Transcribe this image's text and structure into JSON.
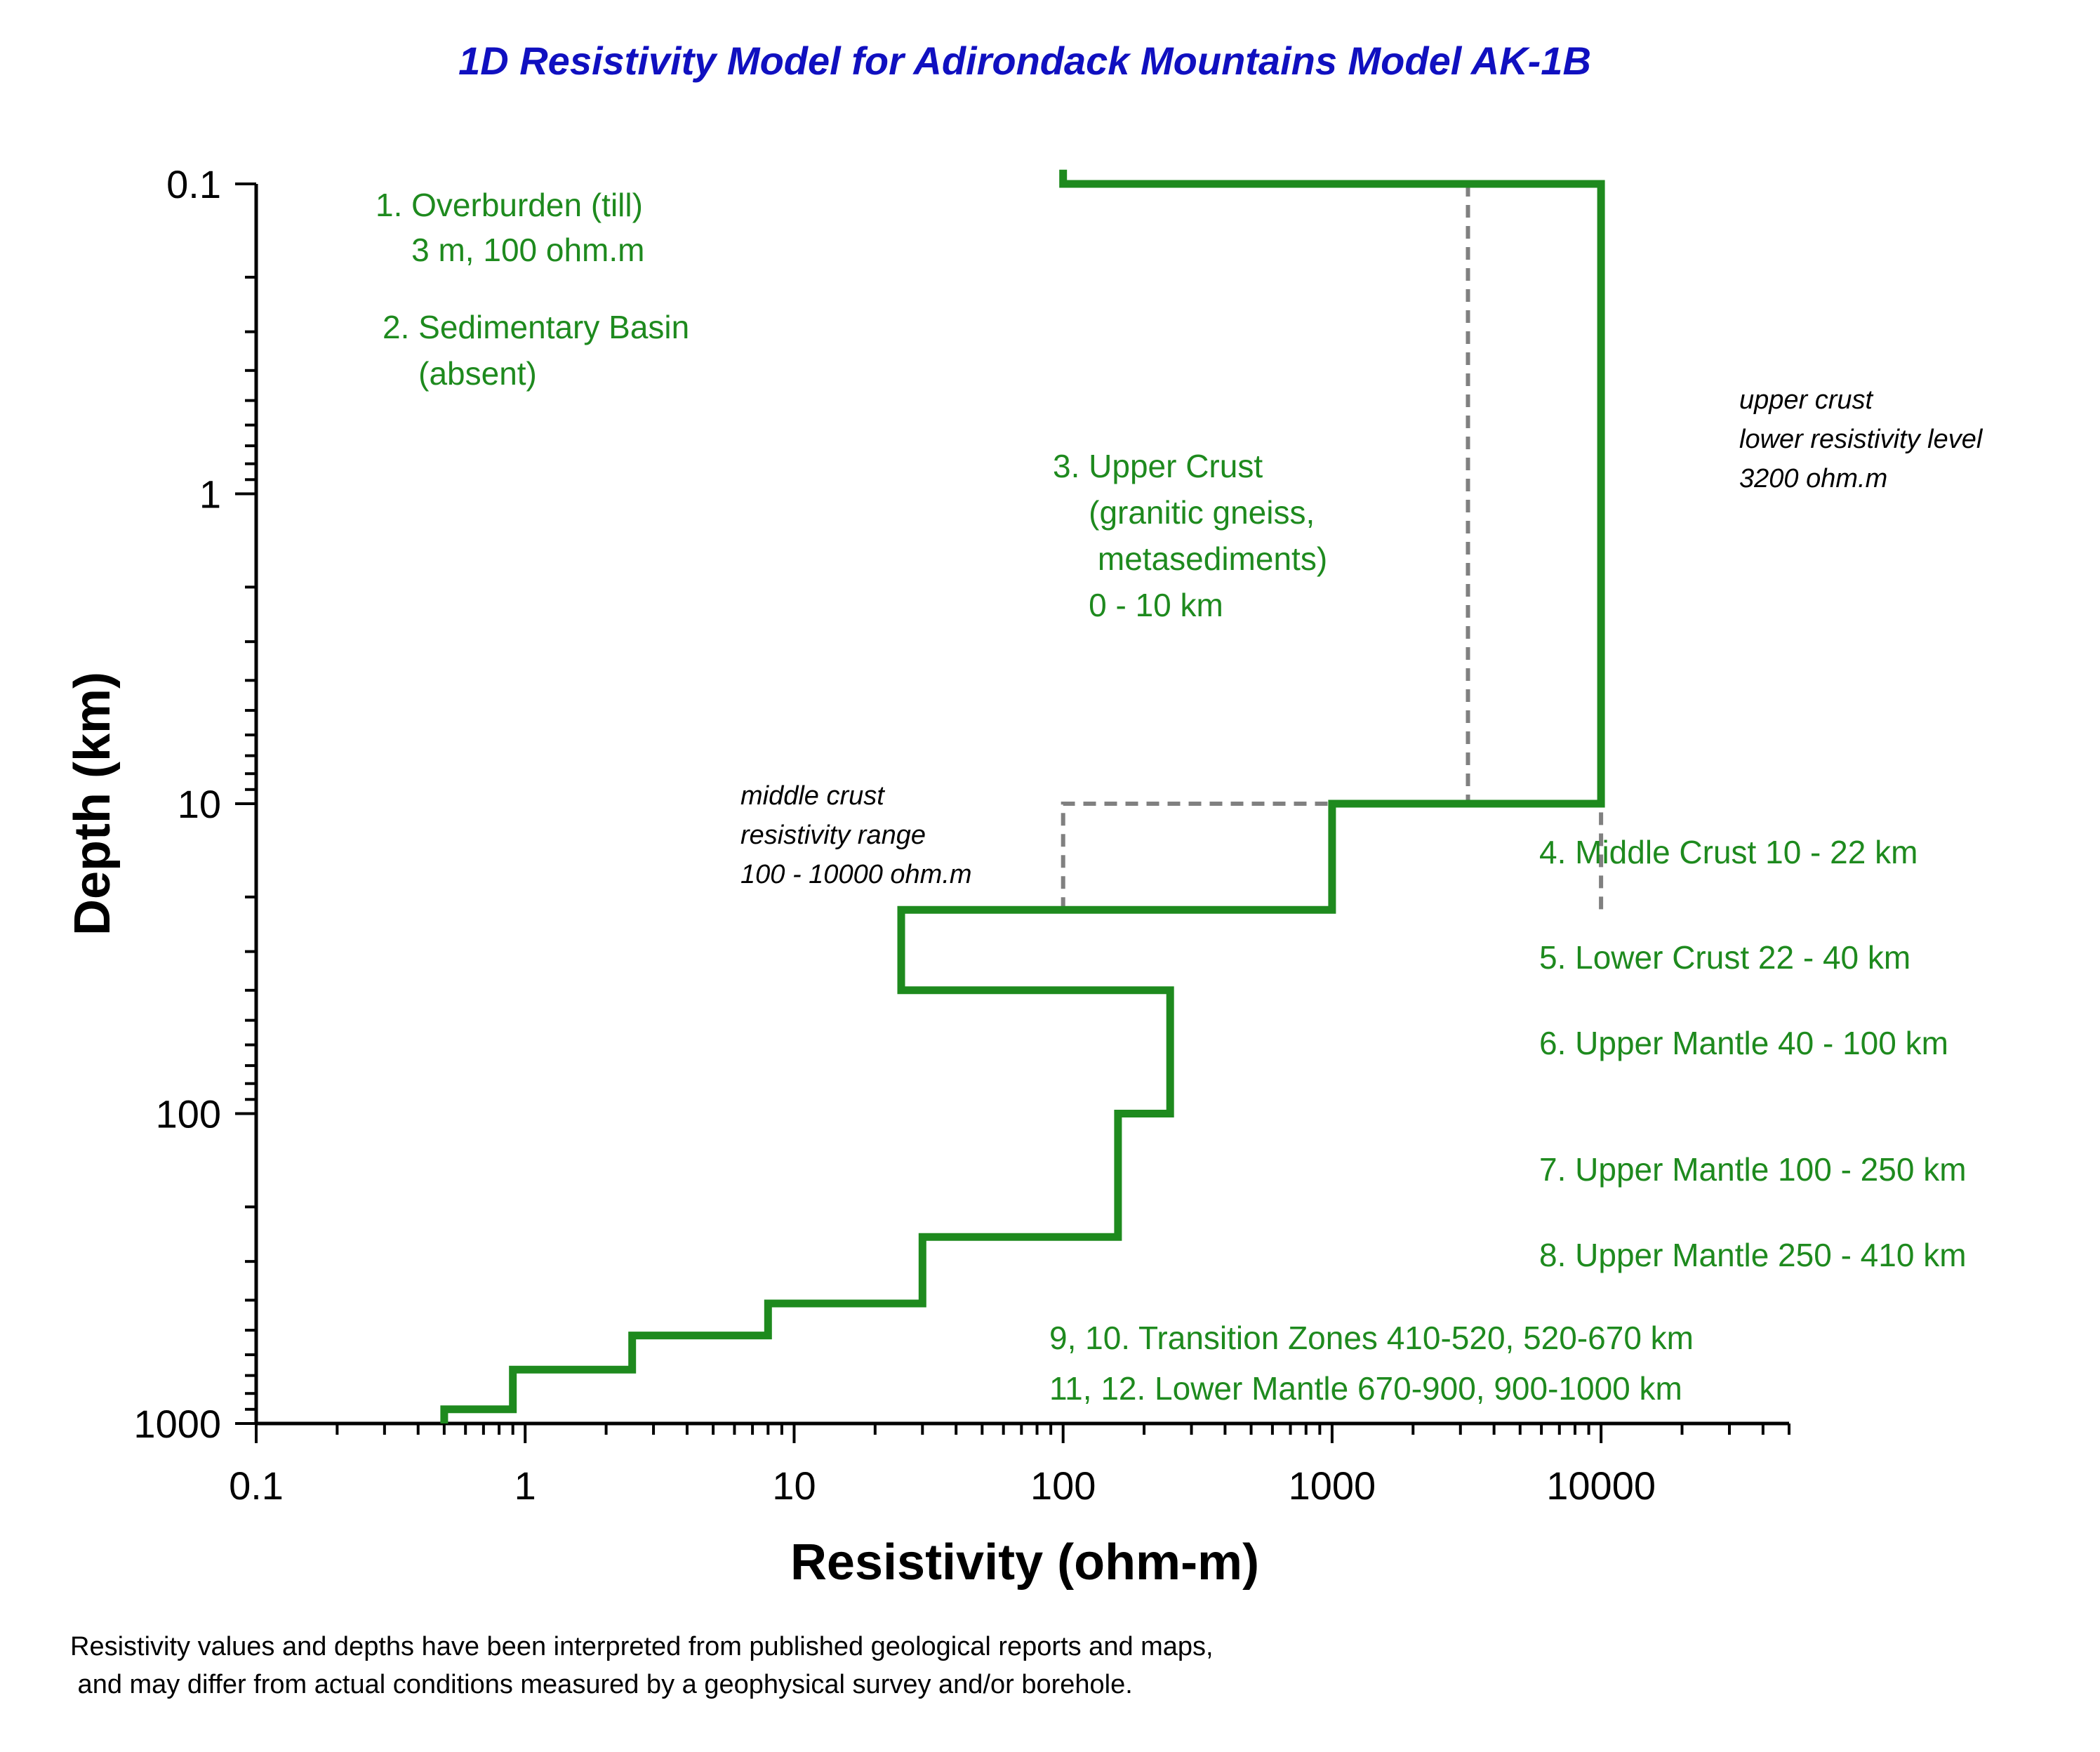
{
  "chart_data": {
    "type": "line",
    "title": "1D Resistivity Model for Adirondack Mountains  Model AK-1B",
    "xlabel": "Resistivity (ohm-m)",
    "ylabel": "Depth (km)",
    "x_scale": "log",
    "y_scale": "log",
    "y_inverted": true,
    "xlim": [
      0.1,
      50000
    ],
    "ylim": [
      0.1,
      1000
    ],
    "x_ticks": [
      0.1,
      1,
      10,
      100,
      1000,
      10000
    ],
    "x_tick_labels": [
      "0.1",
      "1",
      "10",
      "100",
      "1000",
      "10000"
    ],
    "y_ticks": [
      0.1,
      1,
      10,
      100,
      1000
    ],
    "y_tick_labels": [
      "0.1",
      "1",
      "10",
      "100",
      "1000"
    ],
    "grid": false,
    "color": "#1e8a1e",
    "series": [
      {
        "style": "solid",
        "points": [
          [
            100,
            0.09
          ],
          [
            100,
            0.1
          ],
          [
            10000,
            0.1
          ],
          [
            10000,
            10
          ],
          [
            1000,
            10
          ],
          [
            1000,
            22
          ],
          [
            25,
            22
          ],
          [
            25,
            40
          ],
          [
            250,
            40
          ],
          [
            250,
            100
          ],
          [
            160,
            100
          ],
          [
            160,
            250
          ],
          [
            30,
            250
          ],
          [
            30,
            410
          ],
          [
            8,
            410
          ],
          [
            8,
            520
          ],
          [
            2.5,
            520
          ],
          [
            2.5,
            670
          ],
          [
            0.9,
            670
          ],
          [
            0.9,
            900
          ],
          [
            0.5,
            900
          ],
          [
            0.5,
            1000
          ]
        ]
      },
      {
        "style": "dashed",
        "color": "#808080",
        "points": [
          [
            3200,
            0.1
          ],
          [
            3200,
            10
          ]
        ]
      },
      {
        "style": "dashed",
        "color": "#808080",
        "points": [
          [
            100,
            22
          ],
          [
            100,
            10
          ],
          [
            10000,
            10
          ],
          [
            10000,
            22
          ]
        ]
      }
    ],
    "annotations": [
      {
        "lines": [
          "1. Overburden (till)",
          "    3 m, 100 ohm.m"
        ]
      },
      {
        "lines": [
          "2. Sedimentary Basin",
          "    (absent)"
        ]
      },
      {
        "lines": [
          "3. Upper Crust",
          "    (granitic gneiss,",
          "     metasediments)",
          "    0 - 10 km"
        ]
      },
      {
        "lines": [
          "upper crust",
          "lower resistivity level",
          "3200 ohm.m"
        ]
      },
      {
        "lines": [
          "middle crust",
          "resistivity range",
          "100 - 10000 ohm.m"
        ]
      },
      {
        "lines": [
          "4. Middle Crust 10 - 22 km"
        ]
      },
      {
        "lines": [
          "5. Lower Crust 22 - 40 km"
        ]
      },
      {
        "lines": [
          "6. Upper Mantle 40 - 100 km"
        ]
      },
      {
        "lines": [
          "7. Upper Mantle 100 - 250 km"
        ]
      },
      {
        "lines": [
          "8. Upper Mantle  250 - 410 km"
        ]
      },
      {
        "lines": [
          "9, 10. Transition Zones 410-520, 520-670 km"
        ]
      },
      {
        "lines": [
          "11, 12. Lower Mantle 670-900, 900-1000 km"
        ]
      }
    ]
  },
  "footnote": {
    "line1": "Resistivity values and depths have been interpreted from published geological reports and maps,",
    "line2": " and may differ from actual conditions measured by a geophysical survey and/or borehole."
  }
}
